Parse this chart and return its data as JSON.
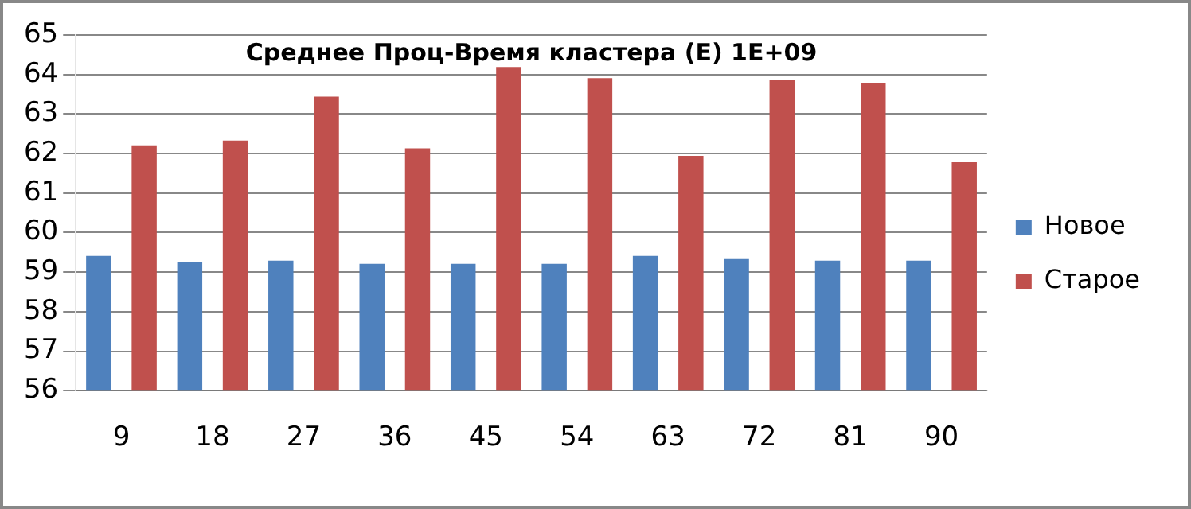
{
  "chart_data": {
    "type": "bar",
    "title": "Среднее Проц-Время кластера (E) 1E+09",
    "categories": [
      "9",
      "18",
      "27",
      "36",
      "45",
      "54",
      "63",
      "72",
      "81",
      "90"
    ],
    "series": [
      {
        "name": "Новое",
        "color": "#4f81bd",
        "values": [
          59.41,
          59.25,
          59.29,
          59.21,
          59.21,
          59.21,
          59.41,
          59.33,
          59.29,
          59.29
        ]
      },
      {
        "name": "Старое",
        "color": "#c0504d",
        "values": [
          62.21,
          62.33,
          63.44,
          62.13,
          64.19,
          63.91,
          61.94,
          63.87,
          63.79,
          61.78
        ]
      }
    ],
    "ylim": [
      56,
      65
    ],
    "yticks": [
      56,
      57,
      58,
      59,
      60,
      61,
      62,
      63,
      64,
      65
    ],
    "grid": "y",
    "legend": "right"
  }
}
